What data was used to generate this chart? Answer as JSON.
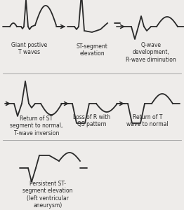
{
  "background_color": "#eeecea",
  "waveform_color": "#2a2a2a",
  "arrow_color": "#2a2a2a",
  "text_color": "#2a2a2a",
  "labels": [
    "Giant postive\nT waves",
    "ST-segment\nelevation",
    "Q-wave\ndevelopment,\nR-wave diminution",
    "Return of ST\nsegment to normal,\nT-wave inversion",
    "Loss of R with\nQS pattern",
    "Return of T\nwave to normal",
    "Persistent ST-\nsegment elevation\n(left ventricular\naneurysm)"
  ],
  "label_fontsize": 5.5,
  "line_width": 1.3
}
